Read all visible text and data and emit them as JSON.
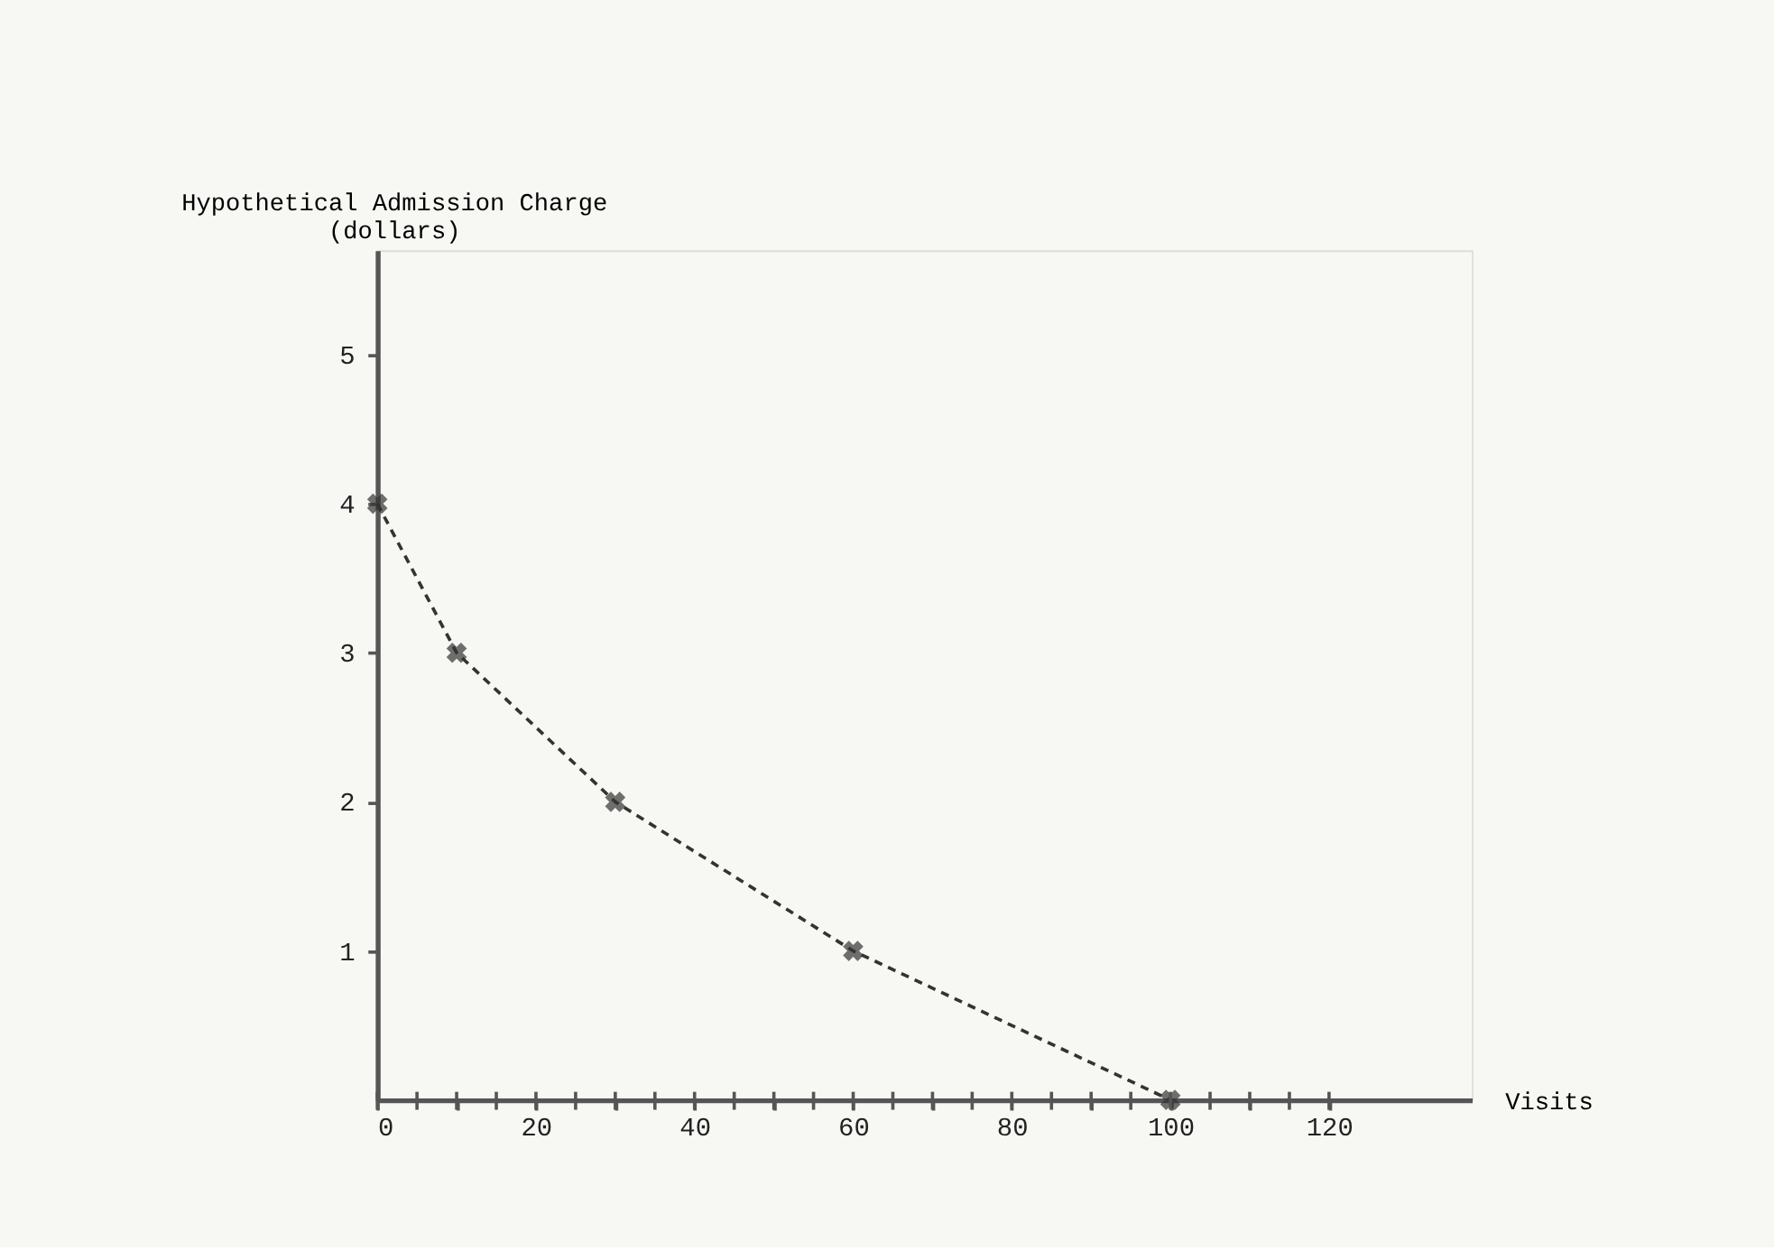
{
  "chart_data": {
    "type": "line",
    "ylabel": "Hypothetical Admission Charge\n(dollars)",
    "xlabel": "Visits",
    "x": [
      0,
      10,
      30,
      60,
      100
    ],
    "series": [
      {
        "color": "#333333",
        "values": [
          4,
          3,
          2,
          1,
          0
        ]
      }
    ],
    "xlim": [
      0,
      138
    ],
    "ylim": [
      0,
      5.7
    ],
    "xticks": [
      0,
      {
        "value": 5,
        "label": null
      },
      {
        "value": 10,
        "label": null
      },
      {
        "value": 15,
        "label": null
      },
      20,
      {
        "value": 25,
        "label": null
      },
      {
        "value": 30,
        "label": null
      },
      {
        "value": 35,
        "label": null
      },
      40,
      {
        "value": 45,
        "label": null
      },
      {
        "value": 50,
        "label": null
      },
      {
        "value": 55,
        "label": null
      },
      60,
      {
        "value": 65,
        "label": null
      },
      {
        "value": 70,
        "label": null
      },
      {
        "value": 75,
        "label": null
      },
      80,
      {
        "value": 85,
        "label": null
      },
      {
        "value": 90,
        "label": null
      },
      {
        "value": 95,
        "label": null
      },
      100,
      {
        "value": 105,
        "label": null
      },
      {
        "value": 110,
        "label": null
      },
      {
        "value": 115,
        "label": null
      },
      120
    ],
    "yticks": [
      1,
      2,
      3,
      4,
      5
    ],
    "grid": false,
    "marker": "cross",
    "line_style": "dashed"
  }
}
